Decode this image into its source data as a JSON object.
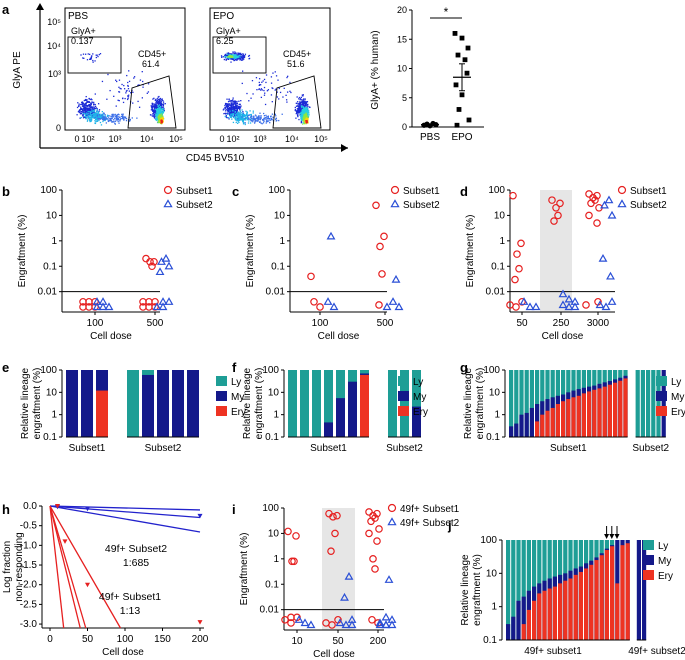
{
  "chart_data": {
    "a": {
      "letter": "a",
      "facs": {
        "type": "scatter",
        "xlabel": "CD45 BV510",
        "ylabel": "GlyA PE",
        "xticks": [
          "0",
          "10²",
          "10³",
          "10⁴",
          "10⁵"
        ],
        "yticks": [
          "0",
          "10³",
          "10⁴",
          "10⁵"
        ],
        "panels": [
          {
            "name": "PBS",
            "glya_label": "GlyA+",
            "glya_value": "0.137",
            "cd45_label": "CD45+",
            "cd45_value": "61.4"
          },
          {
            "name": "EPO",
            "glya_label": "GlyA+",
            "glya_value": "6.25",
            "cd45_label": "CD45+",
            "cd45_value": "51.6"
          }
        ]
      },
      "dotplot": {
        "type": "scatter",
        "ylabel": "GlyA+ (% human)",
        "categories": [
          "PBS",
          "EPO"
        ],
        "yticks": [
          "0",
          "5",
          "10",
          "15",
          "20"
        ],
        "ylim": [
          0,
          20
        ],
        "significance": "*",
        "PBS": [
          0.3,
          0.5,
          0.2,
          0.6,
          0.4
        ],
        "EPO": [
          16,
          15.2,
          13.5,
          12.3,
          11.5,
          9.2,
          7.2,
          5.5,
          3.0,
          1.2,
          0.3
        ],
        "means": [
          0.4,
          8.5
        ]
      }
    },
    "b": {
      "letter": "b",
      "type": "scatter",
      "xlabel": "Cell dose",
      "ylabel": "Engraftment (%)",
      "yticks": [
        "100",
        "10",
        "1",
        "0.1",
        "0.01"
      ],
      "legend": [
        "Subset1",
        "Subset2"
      ],
      "categories": [
        "100",
        "500"
      ],
      "s1": [
        [
          0.004,
          0.004,
          0.004,
          0.0025,
          0.0025,
          0.0025
        ],
        [
          0.2,
          0.15,
          0.15,
          0.1,
          0.004,
          0.004,
          0.004,
          0.0025,
          0.0025,
          0.0025
        ]
      ],
      "s2": [
        [
          0.004,
          0.004,
          0.0025,
          0.0025,
          0.0025
        ],
        [
          0.2,
          0.15,
          0.1,
          0.06,
          0.004,
          0.004,
          0.0025,
          0.0025
        ]
      ]
    },
    "c": {
      "letter": "c",
      "type": "scatter",
      "xlabel": "Cell dose",
      "ylabel": "Engraftment (%)",
      "yticks": [
        "100",
        "10",
        "1",
        "0.1",
        "0.01"
      ],
      "legend": [
        "Subset1",
        "Subset2"
      ],
      "categories": [
        "100",
        "500"
      ],
      "s1": [
        [
          0.04,
          0.004,
          0.0025
        ],
        [
          25,
          1.5,
          0.6,
          0.05,
          0.003
        ]
      ],
      "s2": [
        [
          1.5,
          0.004,
          0.0025
        ],
        [
          0.03,
          0.004,
          0.0025,
          0.0025
        ]
      ]
    },
    "d": {
      "letter": "d",
      "type": "scatter",
      "xlabel": "Cell dose",
      "ylabel": "Engraftment (%)",
      "yticks": [
        "100",
        "10",
        "1",
        "0.1",
        "0.01"
      ],
      "legend": [
        "Subset1",
        "Subset2"
      ],
      "categories": [
        "50",
        "250",
        "3000"
      ],
      "s1": [
        [
          60,
          0.8,
          0.3,
          0.08,
          0.03,
          0.004,
          0.003,
          0.0025
        ],
        [
          40,
          30,
          20,
          10,
          6
        ],
        [
          70,
          60,
          50,
          40,
          30,
          20,
          10,
          5,
          0.004,
          0.003
        ]
      ],
      "s2": [
        [
          0.004,
          0.0025,
          0.0025
        ],
        [
          0.008,
          0.005,
          0.004,
          0.003,
          0.0025,
          0.0025
        ],
        [
          40,
          25,
          10,
          0.2,
          0.04,
          0.004,
          0.003,
          0.0025
        ]
      ]
    },
    "e": {
      "letter": "e",
      "type": "bar",
      "ylabel": "Relative lineage engraftment (%)",
      "yticks": [
        "100",
        "10",
        "1",
        "0.1"
      ],
      "legend": [
        "Ly",
        "My",
        "Ery"
      ],
      "groups": [
        "Subset1",
        "Subset2"
      ],
      "bars": [
        [
          [
            0,
            100,
            0
          ],
          [
            0,
            100,
            0
          ],
          [
            0,
            100,
            12
          ]
        ],
        [
          [
            100,
            0,
            0
          ],
          [
            100,
            60,
            0
          ],
          [
            0,
            100,
            0
          ],
          [
            0,
            100,
            0
          ],
          [
            0,
            100,
            0
          ]
        ]
      ]
    },
    "f": {
      "letter": "f",
      "type": "bar",
      "ylabel": "Relative lineage engraftment (%)",
      "yticks": [
        "100",
        "10",
        "1",
        "0.1"
      ],
      "legend": [
        "Ly",
        "My",
        "Ery"
      ],
      "groups": [
        "Subset1",
        "Subset2"
      ],
      "bars": [
        [
          [
            100,
            0,
            0
          ],
          [
            100,
            0,
            0
          ],
          [
            100,
            0,
            0
          ],
          [
            100,
            0.45,
            0
          ],
          [
            100,
            5.5,
            0
          ],
          [
            100,
            30,
            0
          ],
          [
            100,
            70,
            60
          ]
        ],
        [
          [
            100,
            0,
            0
          ],
          [
            100,
            0,
            0
          ],
          [
            100,
            2.3,
            0
          ]
        ]
      ]
    },
    "g": {
      "letter": "g",
      "type": "bar",
      "ylabel": "Relative lineage engraftment (%)",
      "yticks": [
        "100",
        "10",
        "1",
        "0.1"
      ],
      "legend": [
        "Ly",
        "My",
        "Ery"
      ],
      "groups": [
        "Subset1",
        "Subset2"
      ],
      "bars": [
        [
          [
            100,
            0.3,
            0
          ],
          [
            100,
            0.4,
            0
          ],
          [
            100,
            1,
            0
          ],
          [
            100,
            1.2,
            0
          ],
          [
            100,
            2,
            0
          ],
          [
            100,
            3,
            0.5
          ],
          [
            100,
            4,
            1
          ],
          [
            100,
            5,
            1.5
          ],
          [
            100,
            6,
            2
          ],
          [
            100,
            7,
            3
          ],
          [
            100,
            8,
            4
          ],
          [
            100,
            10,
            5
          ],
          [
            100,
            12,
            6
          ],
          [
            100,
            14,
            7
          ],
          [
            100,
            16,
            9
          ],
          [
            100,
            18,
            11
          ],
          [
            100,
            20,
            13
          ],
          [
            100,
            24,
            15
          ],
          [
            100,
            28,
            18
          ],
          [
            100,
            32,
            22
          ],
          [
            100,
            38,
            27
          ],
          [
            100,
            45,
            33
          ],
          [
            100,
            55,
            42
          ]
        ],
        [
          [
            100,
            0,
            0
          ],
          [
            100,
            0,
            0
          ],
          [
            100,
            0,
            0
          ],
          [
            100,
            0,
            0
          ],
          [
            100,
            0,
            0
          ],
          [
            0,
            100,
            0
          ]
        ]
      ]
    },
    "h": {
      "letter": "h",
      "type": "line",
      "xlabel": "Cell dose",
      "ylabel": "Log fraction non-responding",
      "xticks": [
        "0",
        "50",
        "100",
        "150",
        "200"
      ],
      "yticks": [
        "0.0",
        "-0.5",
        "-1.0",
        "-1.5",
        "-2.0",
        "-2.5",
        "-3.0"
      ],
      "xlim": [
        0,
        200
      ],
      "ylim": [
        -3.1,
        0
      ],
      "subset2": {
        "label": "49f+ Subset2",
        "freq": "1:685",
        "color": "#2222cc",
        "slopes": [
          -0.0005,
          -0.00146,
          -0.0033
        ],
        "points": [
          [
            10,
            -0.02
          ],
          [
            50,
            -0.07
          ],
          [
            200,
            -0.25
          ]
        ]
      },
      "subset1": {
        "label": "49f+ Subset1",
        "freq": "1:13",
        "color": "#e62020",
        "slopes": [
          -0.033,
          -0.0769,
          -0.065,
          -0.17
        ],
        "points": [
          [
            10,
            0
          ],
          [
            20,
            -0.9
          ],
          [
            50,
            -2.0
          ],
          [
            200,
            -2.95
          ]
        ]
      }
    },
    "i": {
      "letter": "i",
      "type": "scatter",
      "xlabel": "Cell dose",
      "ylabel": "Engraftment (%)",
      "yticks": [
        "100",
        "10",
        "1",
        "0.1",
        "0.01"
      ],
      "legend": [
        "49f+ Subset1",
        "49f+ Subset2"
      ],
      "categories": [
        "10",
        "50",
        "200"
      ],
      "s1": [
        [
          12,
          8,
          0.8,
          0.8,
          0.005,
          0.005,
          0.004,
          0.003
        ],
        [
          60,
          50,
          45,
          10,
          2,
          0.004,
          0.003,
          0.0025
        ],
        [
          70,
          60,
          50,
          40,
          30,
          15,
          10,
          5,
          1,
          0.4,
          0.004,
          0.003
        ]
      ],
      "s2": [
        [
          0.004,
          0.003,
          0.0025
        ],
        [
          0.2,
          0.03,
          0.004,
          0.003,
          0.0025,
          0.0025
        ],
        [
          0.15,
          0.005,
          0.004,
          0.003,
          0.0025,
          0.0025,
          0.0025,
          0.0025
        ]
      ]
    },
    "j": {
      "letter": "j",
      "type": "bar",
      "ylabel": "Relative lineage engraftment (%)",
      "yticks": [
        "100",
        "10",
        "1",
        "0.1"
      ],
      "legend": [
        "Ly",
        "My",
        "Ery"
      ],
      "groups": [
        "49f+ subset1",
        "49f+ subset2"
      ],
      "arrows": 3,
      "bars": [
        [
          [
            100,
            0.3,
            0
          ],
          [
            100,
            0.5,
            0
          ],
          [
            100,
            1.5,
            0
          ],
          [
            100,
            2,
            0.3
          ],
          [
            100,
            3,
            0.8
          ],
          [
            100,
            4,
            1.5
          ],
          [
            100,
            5,
            2.5
          ],
          [
            100,
            6,
            3
          ],
          [
            100,
            7,
            3.5
          ],
          [
            100,
            8,
            4
          ],
          [
            100,
            9,
            5
          ],
          [
            100,
            10,
            6
          ],
          [
            100,
            12,
            7
          ],
          [
            100,
            14,
            9
          ],
          [
            100,
            16,
            11
          ],
          [
            100,
            20,
            14
          ],
          [
            100,
            24,
            18
          ],
          [
            100,
            30,
            25
          ],
          [
            100,
            40,
            35
          ],
          [
            100,
            55,
            50
          ],
          [
            100,
            70,
            65
          ],
          [
            0,
            100,
            5
          ],
          [
            0,
            100,
            70
          ],
          [
            0,
            100,
            80
          ]
        ],
        [
          [
            0,
            100,
            0
          ],
          [
            0,
            100,
            0
          ]
        ]
      ]
    },
    "colors": {
      "sub1": "#e62020",
      "sub2": "#2a4fd6",
      "ly": "#1e9e96",
      "my": "#14198a",
      "ery": "#ee3322",
      "shade": "#e6e6e6",
      "cutoff": "#000000"
    }
  }
}
